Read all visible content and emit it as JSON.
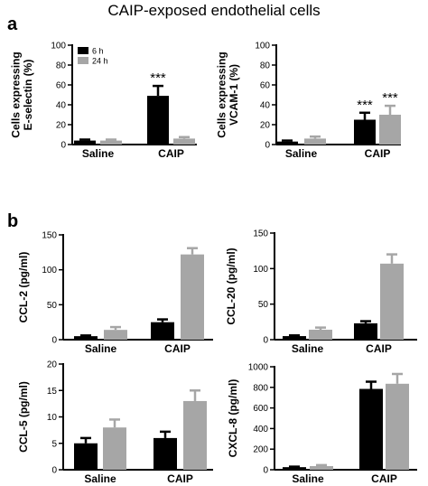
{
  "figure_title": "CAIP-exposed endothelial cells",
  "panel_labels": [
    "a",
    "b"
  ],
  "colors": {
    "6 h": "#000000",
    "24 h": "#a6a6a6"
  },
  "chart_data": [
    {
      "type": "bar",
      "panel": "a",
      "ylabel": "Cells expressing E-selectin (%)",
      "ylim": [
        0,
        100
      ],
      "yticks": [
        "0",
        "20",
        "40",
        "60",
        "80",
        "100"
      ],
      "categories": [
        "Saline",
        "CAIP"
      ],
      "legend": [
        "6 h",
        "24 h"
      ],
      "legend_position": "top-left",
      "series": [
        {
          "name": "6 h",
          "values": [
            4,
            49
          ],
          "errors": [
            1,
            10
          ]
        },
        {
          "name": "24 h",
          "values": [
            4,
            6
          ],
          "errors": [
            1,
            1.5
          ]
        }
      ],
      "annotations": [
        {
          "category": "CAIP",
          "series": "6 h",
          "text": "***"
        }
      ]
    },
    {
      "type": "bar",
      "panel": "a",
      "ylabel": "Cells expressing VCAM-1 (%)",
      "ylim": [
        0,
        100
      ],
      "yticks": [
        "0",
        "20",
        "40",
        "60",
        "80",
        "100"
      ],
      "categories": [
        "Saline",
        "CAIP"
      ],
      "series": [
        {
          "name": "6 h",
          "values": [
            3,
            25
          ],
          "errors": [
            1,
            7
          ]
        },
        {
          "name": "24 h",
          "values": [
            6,
            30
          ],
          "errors": [
            2,
            9
          ]
        }
      ],
      "annotations": [
        {
          "category": "CAIP",
          "series": "6 h",
          "text": "***"
        },
        {
          "category": "CAIP",
          "series": "24 h",
          "text": "***"
        }
      ]
    },
    {
      "type": "bar",
      "panel": "b",
      "ylabel": "CCL-2 (pg/ml)",
      "ylim": [
        0,
        150
      ],
      "yticks": [
        "0",
        "50",
        "100",
        "150"
      ],
      "categories": [
        "Saline",
        "CAIP"
      ],
      "series": [
        {
          "name": "6 h",
          "values": [
            5,
            25
          ],
          "errors": [
            1,
            4
          ]
        },
        {
          "name": "24 h",
          "values": [
            14,
            122
          ],
          "errors": [
            4,
            9
          ]
        }
      ]
    },
    {
      "type": "bar",
      "panel": "b",
      "ylabel": "CCL-20 (pg/ml)",
      "ylim": [
        0,
        150
      ],
      "yticks": [
        "0",
        "50",
        "100",
        "150"
      ],
      "categories": [
        "Saline",
        "CAIP"
      ],
      "series": [
        {
          "name": "6 h",
          "values": [
            5,
            23
          ],
          "errors": [
            1,
            3
          ]
        },
        {
          "name": "24 h",
          "values": [
            14,
            107
          ],
          "errors": [
            3,
            13
          ]
        }
      ]
    },
    {
      "type": "bar",
      "panel": "b",
      "ylabel": "CCL-5 (pg/ml)",
      "ylim": [
        0,
        20
      ],
      "yticks": [
        "0",
        "5",
        "10",
        "15",
        "20"
      ],
      "categories": [
        "Saline",
        "CAIP"
      ],
      "series": [
        {
          "name": "6 h",
          "values": [
            5,
            6
          ],
          "errors": [
            1,
            1.2
          ]
        },
        {
          "name": "24 h",
          "values": [
            8,
            13
          ],
          "errors": [
            1.5,
            2
          ]
        }
      ]
    },
    {
      "type": "bar",
      "panel": "b",
      "ylabel": "CXCL-8 (pg/ml)",
      "ylim": [
        0,
        1000
      ],
      "yticks": [
        "0",
        "200",
        "400",
        "600",
        "800",
        "1000"
      ],
      "categories": [
        "Saline",
        "CAIP"
      ],
      "series": [
        {
          "name": "6 h",
          "values": [
            25,
            785
          ],
          "errors": [
            5,
            70
          ]
        },
        {
          "name": "24 h",
          "values": [
            35,
            835
          ],
          "errors": [
            10,
            95
          ]
        }
      ]
    }
  ]
}
